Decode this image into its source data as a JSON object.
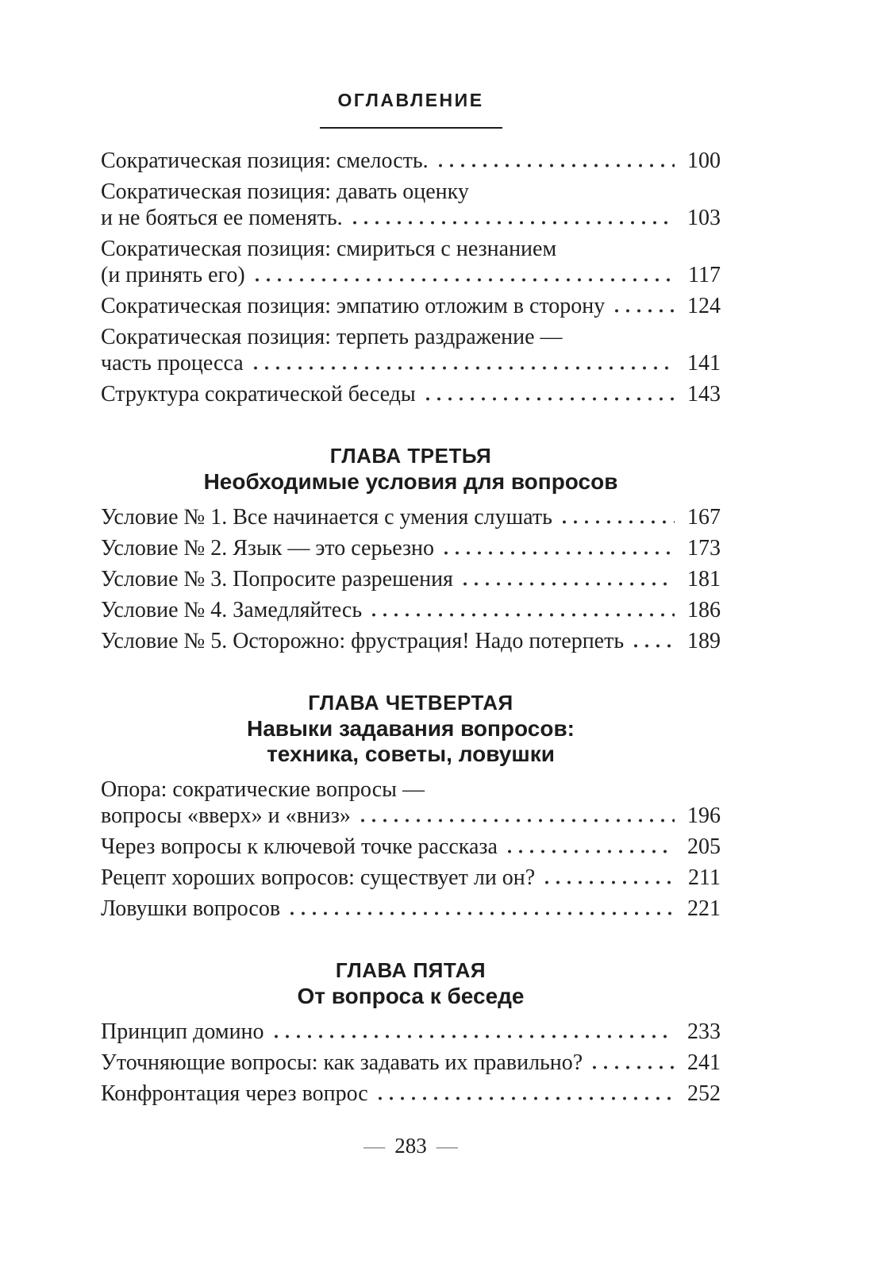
{
  "header": {
    "title": "ОГЛАВЛЕНИЕ"
  },
  "colors": {
    "text": "#1f1f1f",
    "background": "#ffffff",
    "rule": "#1d1d1d",
    "footer_dash": "#8a8a8a"
  },
  "groups": [
    {
      "entries": [
        {
          "lines": [
            "Сократическая позиция: смелость."
          ],
          "page": "100"
        },
        {
          "lines": [
            "Сократическая позиция: давать оценку",
            "и не бояться ее поменять."
          ],
          "page": "103"
        },
        {
          "lines": [
            "Сократическая позиция: смириться с незнанием",
            "(и принять его)"
          ],
          "page": "117"
        },
        {
          "lines": [
            "Сократическая позиция: эмпатию отложим в сторону"
          ],
          "page": "124"
        },
        {
          "lines": [
            "Сократическая позиция: терпеть раздражение —",
            "часть процесса"
          ],
          "page": "141"
        },
        {
          "lines": [
            "Структура сократической беседы"
          ],
          "page": "143"
        }
      ]
    },
    {
      "heading": [
        "ГЛАВА ТРЕТЬЯ",
        "Необходимые условия для вопросов"
      ],
      "entries": [
        {
          "lines": [
            "Условие № 1. Все начинается с умения слушать"
          ],
          "page": "167"
        },
        {
          "lines": [
            "Условие № 2. Язык — это серьезно"
          ],
          "page": "173"
        },
        {
          "lines": [
            "Условие № 3. Попросите разрешения"
          ],
          "page": "181"
        },
        {
          "lines": [
            "Условие № 4. Замедляйтесь"
          ],
          "page": "186"
        },
        {
          "lines": [
            "Условие № 5. Осторожно: фрустрация! Надо потерпеть"
          ],
          "page": "189"
        }
      ]
    },
    {
      "heading": [
        "ГЛАВА ЧЕТВЕРТАЯ",
        "Навыки задавания вопросов:",
        "техника, советы, ловушки"
      ],
      "entries": [
        {
          "lines": [
            "Опора: сократические вопросы —",
            "вопросы «вверх» и «вниз»"
          ],
          "page": "196"
        },
        {
          "lines": [
            "Через вопросы к ключевой точке рассказа"
          ],
          "page": "205"
        },
        {
          "lines": [
            "Рецепт хороших вопросов: существует ли он?"
          ],
          "page": "211"
        },
        {
          "lines": [
            "Ловушки вопросов"
          ],
          "page": "221"
        }
      ]
    },
    {
      "heading": [
        "ГЛАВА ПЯТАЯ",
        "От вопроса к беседе"
      ],
      "entries": [
        {
          "lines": [
            "Принцип домино"
          ],
          "page": "233"
        },
        {
          "lines": [
            "Уточняющие вопросы: как задавать их правильно?"
          ],
          "page": "241"
        },
        {
          "lines": [
            "Конфронтация через вопрос"
          ],
          "page": "252"
        }
      ]
    }
  ],
  "footer": {
    "left_dash": "—",
    "page_number": "283",
    "right_dash": "—"
  }
}
